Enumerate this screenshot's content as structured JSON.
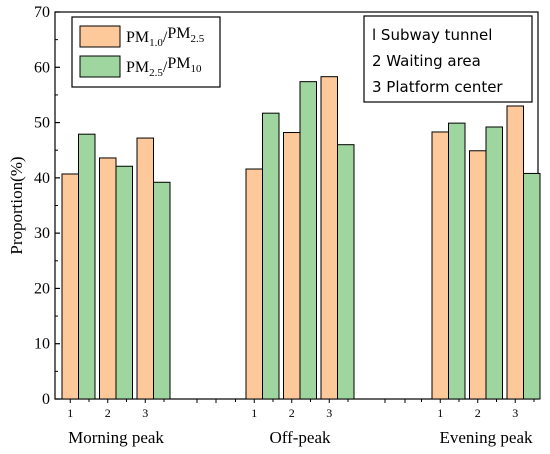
{
  "chart_data": {
    "type": "bar",
    "ylabel": "Proportion(%)",
    "ylim": [
      0,
      70
    ],
    "yticks": [
      0,
      10,
      20,
      30,
      40,
      50,
      60,
      70
    ],
    "grid": false,
    "legend_position": "top-left",
    "groups": [
      {
        "label": "Morning peak",
        "categories": [
          "1",
          "2",
          "3"
        ]
      },
      {
        "label": "Off-peak",
        "categories": [
          "1",
          "2",
          "3"
        ]
      },
      {
        "label": "Evening peak",
        "categories": [
          "1",
          "2",
          "3"
        ]
      }
    ],
    "series": [
      {
        "name": "PM1.0/PM2.5",
        "legend": {
          "a": "PM",
          "a_sub": "1.0",
          "sep": "/",
          "b": "PM",
          "b_sub": "2.5"
        },
        "color": "#fdc89a",
        "values": [
          [
            40.7,
            43.6,
            47.2
          ],
          [
            41.6,
            48.2,
            58.3
          ],
          [
            48.3,
            44.9,
            53.0
          ]
        ]
      },
      {
        "name": "PM2.5/PM10",
        "legend": {
          "a": "PM",
          "a_sub": "2.5",
          "sep": "/",
          "b": "PM",
          "b_sub": "10"
        },
        "color": "#9fd69f",
        "values": [
          [
            47.9,
            42.1,
            39.2
          ],
          [
            51.7,
            57.4,
            46.0
          ],
          [
            49.9,
            49.2,
            40.8
          ]
        ]
      }
    ],
    "annotation": [
      "l Subway tunnel",
      "2 Waiting area",
      "3 Platform center"
    ]
  }
}
